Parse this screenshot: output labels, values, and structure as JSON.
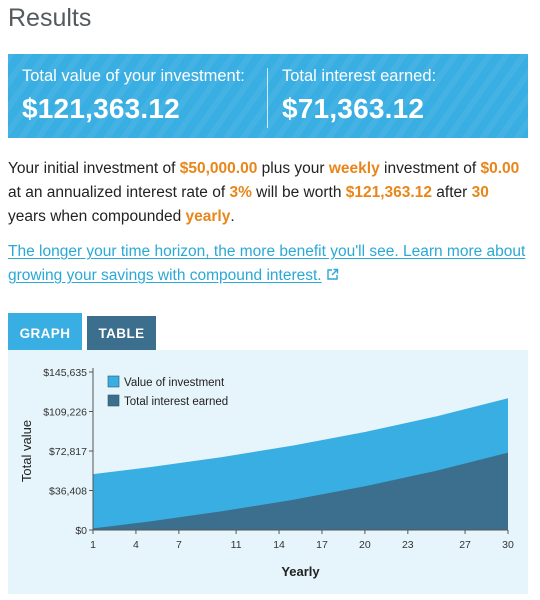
{
  "header": {
    "title": "Results"
  },
  "banner": {
    "total_value_label": "Total value of your investment:",
    "total_value": "$121,363.12",
    "interest_label": "Total interest earned:",
    "interest_value": "$71,363.12"
  },
  "summary": {
    "t1": "Your initial investment of ",
    "initial": "$50,000.00",
    "t2": " plus your ",
    "frequency": "weekly",
    "t3": " investment of ",
    "contribution": "$0.00",
    "t4": " at an annualized interest rate of ",
    "rate": "3%",
    "t5": " will be worth ",
    "final": "$121,363.12",
    "t6": " after ",
    "years": "30",
    "t7": " years when compounded ",
    "compounding": "yearly",
    "t8": "."
  },
  "link": {
    "text": "The longer your time horizon, the more benefit you'll see. Learn more about growing your savings with compound interest.",
    "icon": "external-link-icon"
  },
  "tabs": [
    {
      "label": "GRAPH",
      "active": true
    },
    {
      "label": "TABLE",
      "active": false
    }
  ],
  "colors": {
    "accent": "#38aee2",
    "dark": "#3c6f8e",
    "highlight": "#e8861a",
    "link": "#2aa8d6"
  },
  "chart_data": {
    "type": "area",
    "title": "",
    "xlabel": "Yearly",
    "ylabel": "Total value",
    "x_ticks": [
      1,
      4,
      7,
      11,
      14,
      17,
      20,
      23,
      27,
      30
    ],
    "y_ticks": [
      "$0",
      "$36,408",
      "$72,817",
      "$109,226",
      "$145,635"
    ],
    "y_tick_values": [
      0,
      36408,
      72817,
      109226,
      145635
    ],
    "ylim": [
      0,
      145635
    ],
    "xlim": [
      1,
      30
    ],
    "legend_position": "top-left",
    "x": [
      1,
      5,
      10,
      15,
      20,
      25,
      30
    ],
    "series": [
      {
        "name": "Value of investment",
        "color": "#38aee2",
        "values": [
          51500,
          57964,
          67196,
          77898,
          90306,
          104689,
          121363
        ]
      },
      {
        "name": "Total interest earned",
        "color": "#3c6f8e",
        "values": [
          1500,
          7964,
          17196,
          27898,
          40306,
          54689,
          71363
        ]
      }
    ]
  }
}
